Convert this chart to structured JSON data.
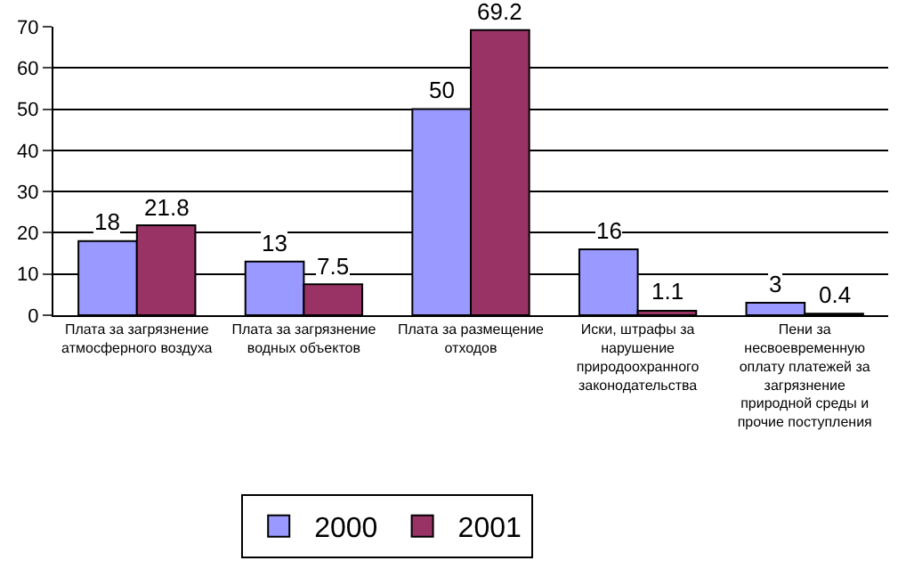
{
  "chart_data": {
    "type": "bar",
    "categories": [
      "Плата за загрязнение атмосферного воздуха",
      "Плата за загрязнение водных объектов",
      "Плата за размещение отходов",
      "Иски, штрафы за нарушение природоохранного законодательства",
      "Пени за несвоевременную оплату платежей за загрязнение природной среды и прочие поступления"
    ],
    "series": [
      {
        "name": "2000",
        "color": "#9999ff",
        "values": [
          18,
          13,
          50,
          16,
          3
        ]
      },
      {
        "name": "2001",
        "color": "#993366",
        "values": [
          21.8,
          7.5,
          69.2,
          1.1,
          0.4
        ]
      }
    ],
    "ylim": [
      0,
      70
    ],
    "yticks": [
      0,
      10,
      20,
      30,
      40,
      50,
      60,
      70
    ],
    "grid": "y",
    "legend": "bottom",
    "data_labels": true
  }
}
